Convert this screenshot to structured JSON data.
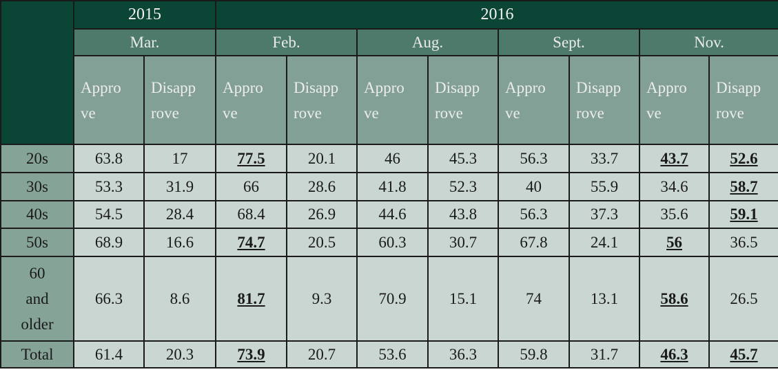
{
  "years": [
    "2015",
    "2016"
  ],
  "months": [
    "Mar.",
    "Feb.",
    "Aug.",
    "Sept.",
    "Nov."
  ],
  "sub_headers": {
    "approve": [
      "Appro",
      "ve"
    ],
    "disapprove": [
      "Disapp",
      "rove"
    ]
  },
  "rows": [
    {
      "label": [
        "20s"
      ],
      "values": [
        "63.8",
        "17",
        "77.5",
        "20.1",
        "46",
        "45.3",
        "56.3",
        "33.7",
        "43.7",
        "52.6"
      ],
      "bold": [
        2,
        8,
        9
      ]
    },
    {
      "label": [
        "30s"
      ],
      "values": [
        "53.3",
        "31.9",
        "66",
        "28.6",
        "41.8",
        "52.3",
        "40",
        "55.9",
        "34.6",
        "58.7"
      ],
      "bold": [
        9
      ]
    },
    {
      "label": [
        "40s"
      ],
      "values": [
        "54.5",
        "28.4",
        "68.4",
        "26.9",
        "44.6",
        "43.8",
        "56.3",
        "37.3",
        "35.6",
        "59.1"
      ],
      "bold": [
        9
      ]
    },
    {
      "label": [
        "50s"
      ],
      "values": [
        "68.9",
        "16.6",
        "74.7",
        "20.5",
        "60.3",
        "30.7",
        "67.8",
        "24.1",
        "56",
        "36.5"
      ],
      "bold": [
        2,
        8
      ]
    },
    {
      "label": [
        "60",
        "and",
        "older"
      ],
      "values": [
        "66.3",
        "8.6",
        "81.7",
        "9.3",
        "70.9",
        "15.1",
        "74",
        "13.1",
        "58.6",
        "26.5"
      ],
      "bold": [
        2,
        8
      ]
    },
    {
      "label": [
        "Total"
      ],
      "values": [
        "61.4",
        "20.3",
        "73.9",
        "20.7",
        "53.6",
        "36.3",
        "59.8",
        "31.7",
        "46.3",
        "45.7"
      ],
      "bold": [
        2,
        8,
        9
      ]
    }
  ]
}
